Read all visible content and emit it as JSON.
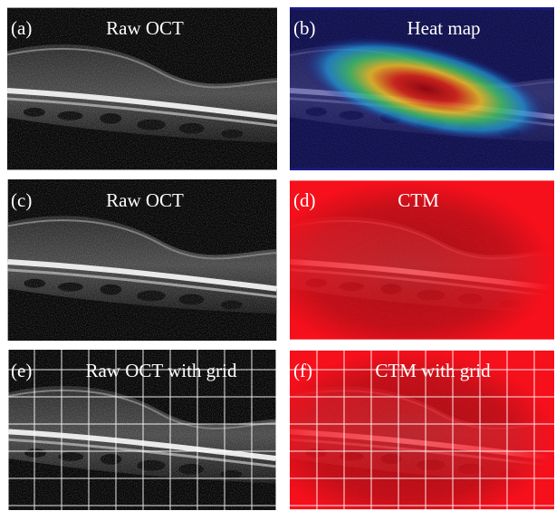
{
  "panels": [
    {
      "label": "(a)",
      "title": "Raw OCT"
    },
    {
      "label": "(b)",
      "title": "Heat map"
    },
    {
      "label": "(c)",
      "title": "Raw OCT"
    },
    {
      "label": "(d)",
      "title": "CTM"
    },
    {
      "label": "(e)",
      "title": "Raw OCT with grid"
    },
    {
      "label": "(f)",
      "title": "CTM with grid"
    }
  ]
}
